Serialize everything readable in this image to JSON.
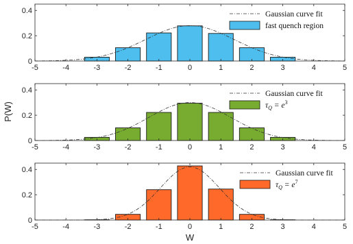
{
  "chart_data": [
    {
      "type": "bar",
      "x": [
        -3,
        -2,
        -1,
        0,
        1,
        2,
        3
      ],
      "values": [
        0.03,
        0.105,
        0.222,
        0.278,
        0.218,
        0.105,
        0.03
      ],
      "xlim": [
        -5,
        5
      ],
      "ylim": [
        0,
        0.45
      ],
      "xticks": [
        "-5",
        "-4",
        "-3",
        "-2",
        "-1",
        "0",
        "1",
        "2",
        "3",
        "4",
        "5"
      ],
      "yticks": [
        "0",
        "0.2",
        "0.4"
      ],
      "gaussian_fit": {
        "mean": 0,
        "sigma": 1.43,
        "amplitude": 0.28
      },
      "bar_color": "#4DBEEE",
      "legend": {
        "line_label": "Gaussian curve fit",
        "bar_label": "fast quench region",
        "location": "top-right"
      }
    },
    {
      "type": "bar",
      "x": [
        -3,
        -2,
        -1,
        0,
        1,
        2,
        3
      ],
      "values": [
        0.025,
        0.1,
        0.222,
        0.295,
        0.222,
        0.1,
        0.025
      ],
      "xlim": [
        -5,
        5
      ],
      "ylim": [
        0,
        0.45
      ],
      "xticks": [
        "-5",
        "-4",
        "-3",
        "-2",
        "-1",
        "0",
        "1",
        "2",
        "3",
        "4",
        "5"
      ],
      "yticks": [
        "0",
        "0.2",
        "0.4"
      ],
      "gaussian_fit": {
        "mean": 0,
        "sigma": 1.33,
        "amplitude": 0.3
      },
      "bar_color": "#77AC30",
      "legend": {
        "line_label": "Gaussian curve fit",
        "bar_label": "τQ = e3",
        "location": "top-right"
      }
    },
    {
      "type": "bar",
      "x": [
        -3,
        -2,
        -1,
        0,
        1,
        2,
        3
      ],
      "values": [
        0.002,
        0.045,
        0.24,
        0.428,
        0.245,
        0.045,
        0.002
      ],
      "xlim": [
        -5,
        5
      ],
      "ylim": [
        0,
        0.45
      ],
      "xticks": [
        "-5",
        "-4",
        "-3",
        "-2",
        "-1",
        "0",
        "1",
        "2",
        "3",
        "4",
        "5"
      ],
      "yticks": [
        "0",
        "0.2",
        "0.4"
      ],
      "gaussian_fit": {
        "mean": 0,
        "sigma": 0.95,
        "amplitude": 0.42
      },
      "bar_color": "#FF6929",
      "legend": {
        "line_label": "Gaussian curve fit",
        "bar_label": "τQ = e7",
        "location": "top-right"
      }
    }
  ],
  "axes": {
    "xlabel": "W",
    "ylabel": "P(W)"
  },
  "legend_math": {
    "tau": "τ",
    "q": "Q",
    "equals": " = e",
    "exp_panel2": "3",
    "exp_panel3": "7"
  }
}
